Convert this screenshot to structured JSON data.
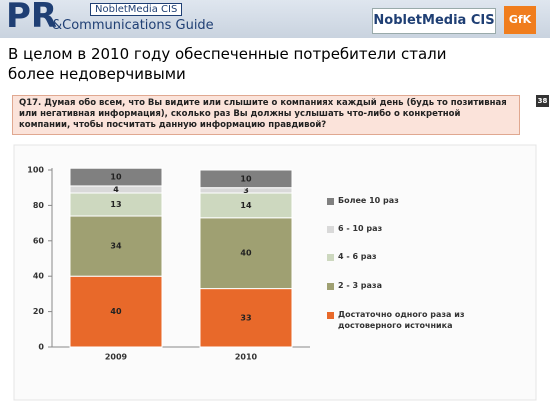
{
  "header": {
    "logo_main": "PR",
    "logo_sub": "&Communications Guide",
    "logo_tag": "NobletMedia CIS",
    "right_logo": "NobletMedia CIS",
    "gfk": "GfK"
  },
  "title": "В целом в 2010 году обеспеченные потребители стали более недоверчивыми",
  "question": "Q17.  Думая обо всем, что Вы видите или слышите о компаниях каждый день (будь то позитивная или негативная информация), сколько раз Вы должны услышать что-либо о конкретной компании, чтобы посчитать данную информацию правдивой?",
  "page_number": "38",
  "chart_data": {
    "type": "stacked_bar",
    "categories": [
      "2009",
      "2010"
    ],
    "series": [
      {
        "name": "Достаточно одного раза из достоверного источника",
        "color": "#e8692a",
        "values": [
          40,
          33
        ]
      },
      {
        "name": "2 - 3 раза",
        "color": "#9fa072",
        "values": [
          34,
          40
        ]
      },
      {
        "name": "4 - 6 раз",
        "color": "#cdd8bf",
        "values": [
          13,
          14
        ]
      },
      {
        "name": "6 - 10 раз",
        "color": "#d9d9d9",
        "values": [
          4,
          3
        ]
      },
      {
        "name": "Более 10 раз",
        "color": "#808080",
        "values": [
          10,
          10
        ]
      }
    ],
    "ylim": [
      0,
      100
    ],
    "yticks": [
      0,
      20,
      40,
      60,
      80,
      100
    ],
    "legend": "right"
  }
}
